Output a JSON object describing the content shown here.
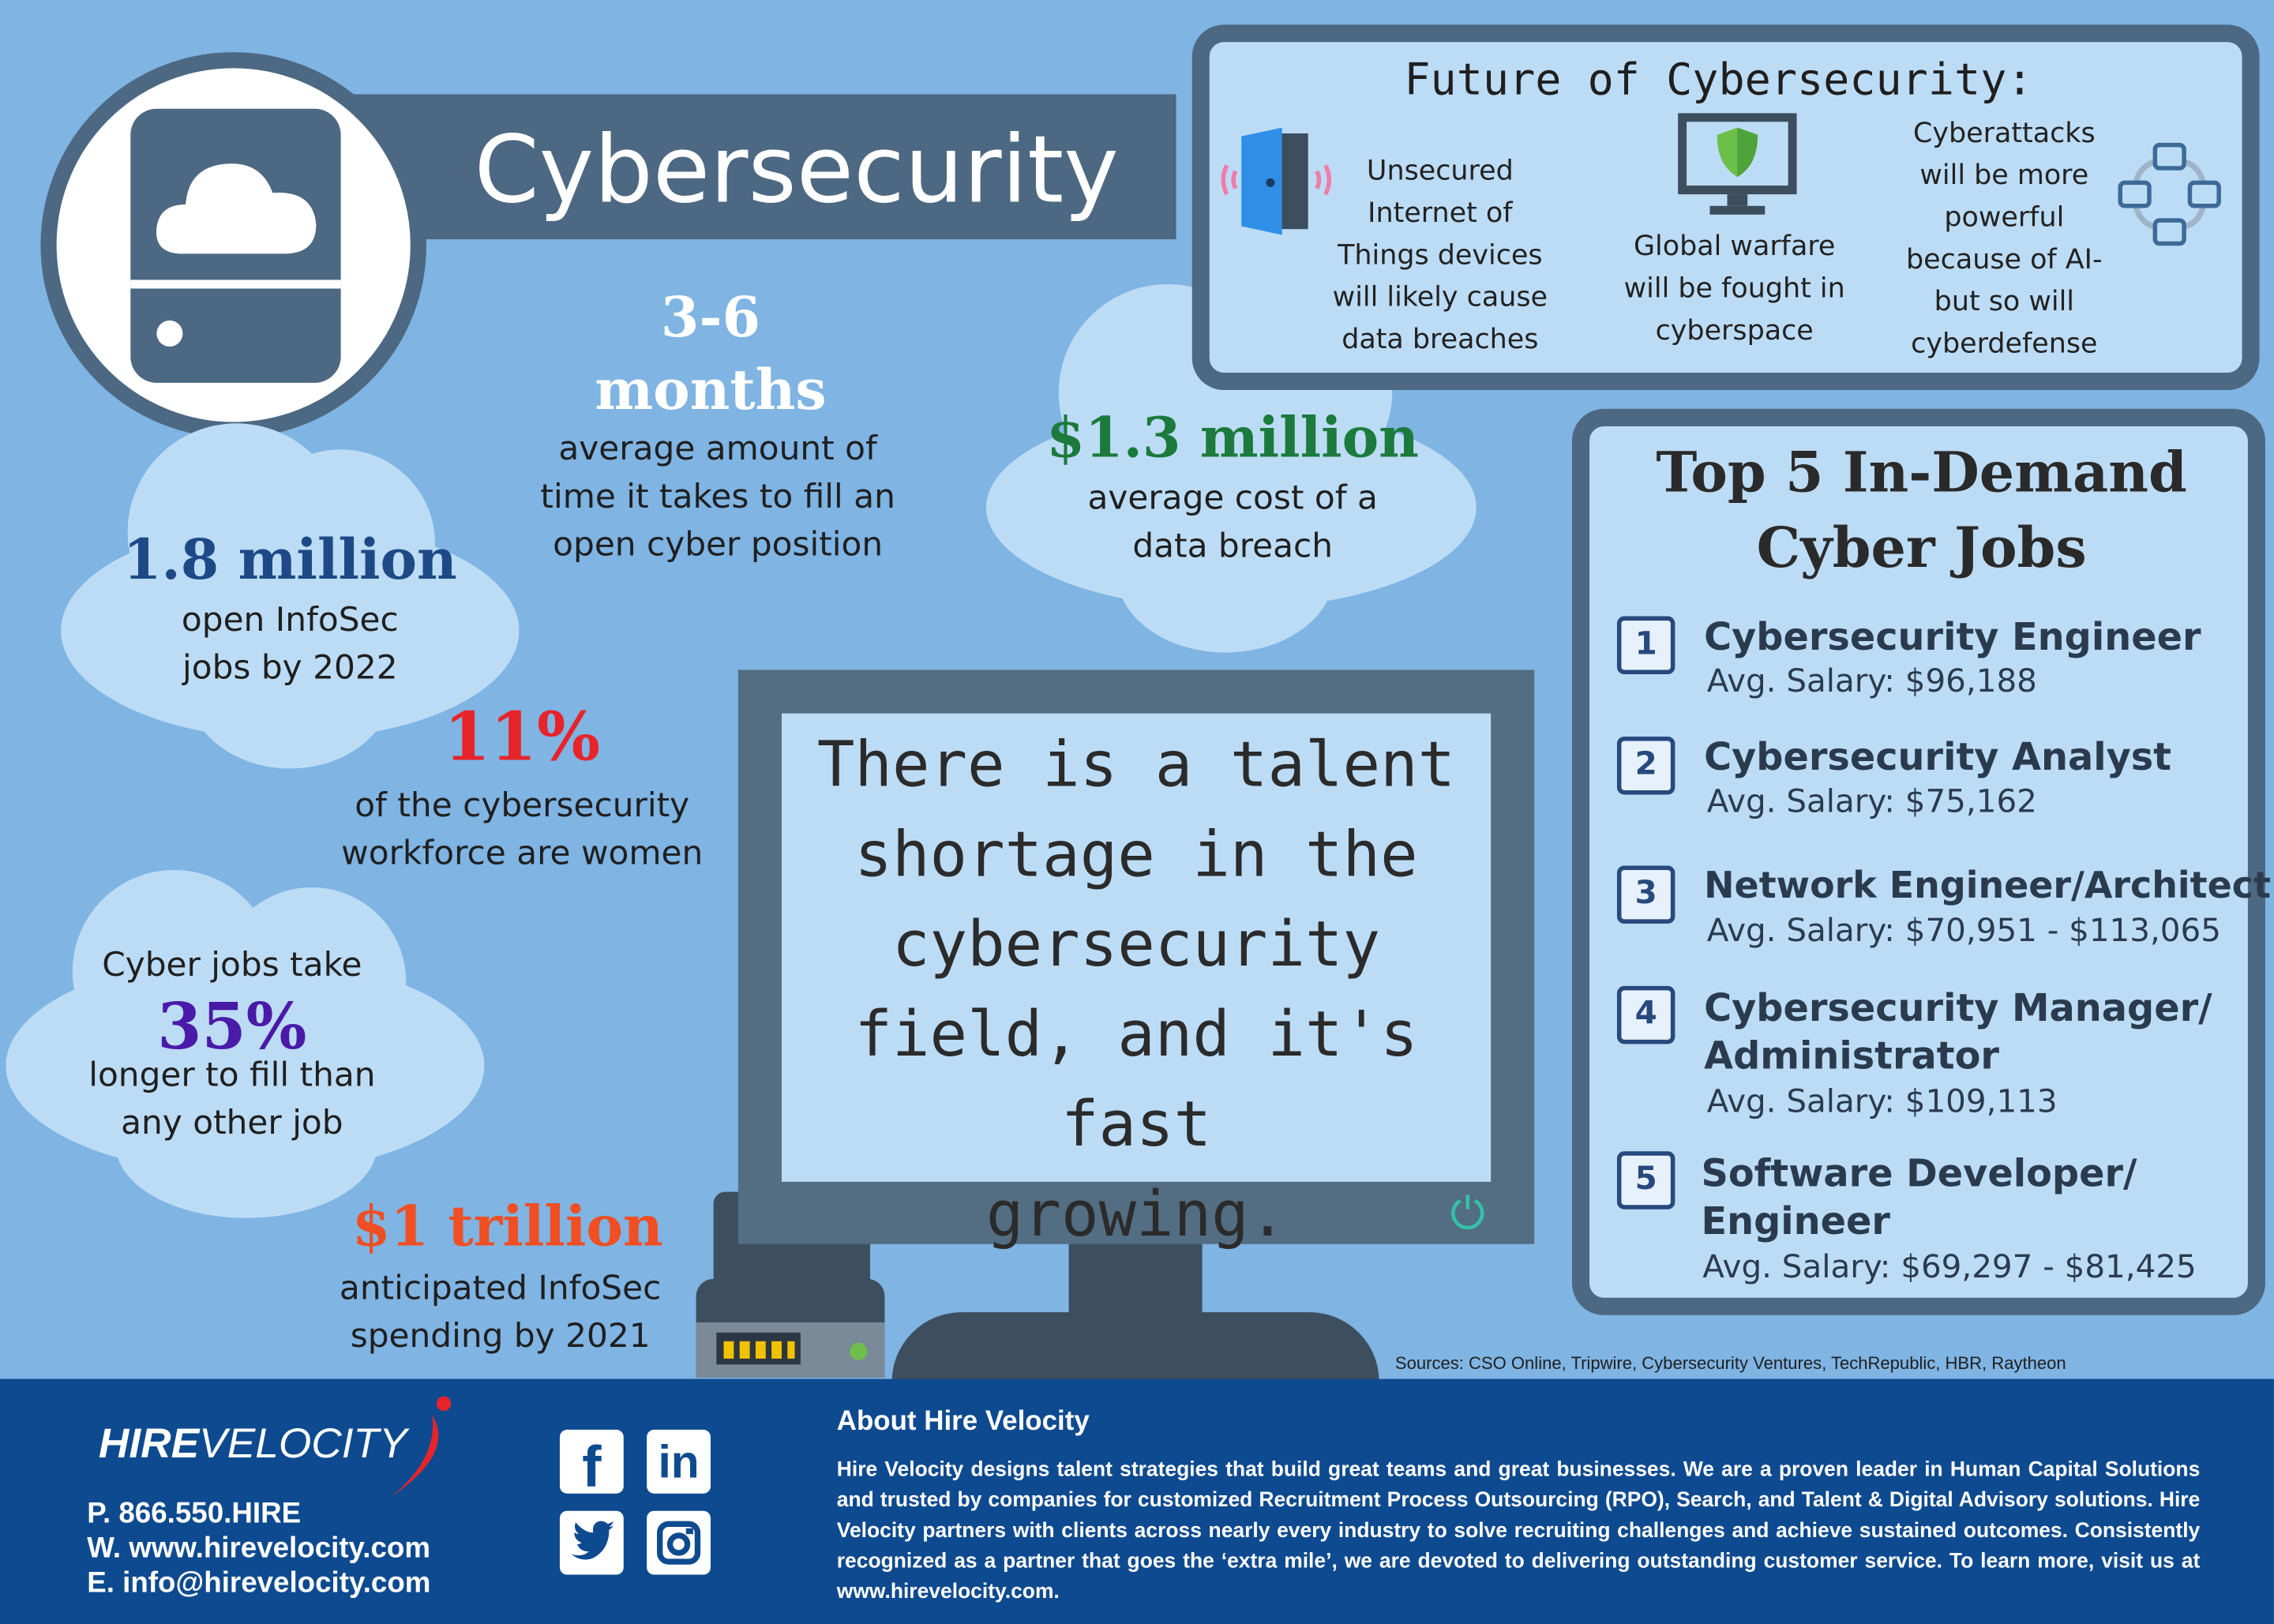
{
  "header": {
    "title": "Cybersecurity"
  },
  "stats": {
    "fill_time": {
      "value_line1": "3-6",
      "value_line2": "months",
      "desc": [
        "average amount of",
        "time it takes to fill an",
        "open cyber position"
      ]
    },
    "breach_cost": {
      "value": "$1.3 million",
      "desc": [
        "average cost of a",
        "data breach"
      ]
    },
    "open_jobs": {
      "value": "1.8 million",
      "desc": [
        "open InfoSec",
        "jobs by 2022"
      ]
    },
    "women": {
      "value": "11%",
      "desc": [
        "of the cybersecurity",
        "workforce are women"
      ]
    },
    "longer": {
      "prefix": "Cyber jobs take",
      "value": "35%",
      "desc": [
        "longer to fill than",
        "any other job"
      ]
    },
    "spending": {
      "value": "$1 trillion",
      "desc": [
        "anticipated InfoSec",
        "spending by 2021"
      ]
    }
  },
  "monitor": {
    "lines": [
      "There is a talent",
      "shortage in the",
      "cybersecurity",
      "field, and it's fast",
      "growing."
    ]
  },
  "future": {
    "title": "Future of Cybersecurity:",
    "items": [
      {
        "icon": "door-icon",
        "lines": [
          "Unsecured",
          "Internet of",
          "Things devices",
          "will likely cause",
          "data breaches"
        ]
      },
      {
        "icon": "shield-monitor-icon",
        "lines": [
          "Global warfare",
          "will be fought in",
          "cyberspace"
        ]
      },
      {
        "icon": "network-icon",
        "lines": [
          "Cyberattacks",
          "will be more",
          "powerful",
          "because of AI-",
          "but so will",
          "cyberdefense"
        ]
      }
    ]
  },
  "jobs": {
    "title_line1": "Top 5 In-Demand",
    "title_line2": "Cyber Jobs",
    "items": [
      {
        "num": "1",
        "title": [
          "Cybersecurity Engineer"
        ],
        "salary": "Avg. Salary: $96,188"
      },
      {
        "num": "2",
        "title": [
          "Cybersecurity Analyst"
        ],
        "salary": "Avg. Salary: $75,162"
      },
      {
        "num": "3",
        "title": [
          "Network Engineer/Architect"
        ],
        "salary": "Avg. Salary: $70,951 - $113,065"
      },
      {
        "num": "4",
        "title": [
          "Cybersecurity Manager/",
          "Administrator"
        ],
        "salary": "Avg. Salary: $109,113"
      },
      {
        "num": "5",
        "title": [
          "Software Developer/",
          "Engineer"
        ],
        "salary": "Avg. Salary: $69,297 - $81,425"
      }
    ]
  },
  "sources": "Sources: CSO Online, Tripwire, Cybersecurity Ventures, TechRepublic, HBR, Raytheon",
  "footer": {
    "logo_hire": "HIRE",
    "logo_velocity": "VELOCITY",
    "phone": "P. 866.550.HIRE",
    "web": "W. www.hirevelocity.com",
    "email": "E. info@hirevelocity.com",
    "about_title": "About Hire Velocity",
    "about_text": "Hire Velocity designs talent strategies that build great teams and great businesses. We are a proven leader in Human Capital Solutions and trusted by companies for customized Recruitment Process Outsourcing (RPO), Search, and Talent & Digital Advisory solutions. Hire Velocity partners with clients across nearly every industry to solve recruiting challenges and achieve sustained outcomes. Consistently recognized as a partner that goes the ‘extra mile’, we are devoted to delivering outstanding customer service. To learn more, visit us at www.hirevelocity.com.",
    "social": {
      "facebook": "f",
      "linkedin": "in",
      "twitter": "twitter-icon",
      "instagram": "instagram-icon"
    }
  },
  "colors": {
    "background": "#7fb4e3",
    "panel": "#4c6882",
    "cloud": "#bcdcf6",
    "footer": "#0e4a8f",
    "green": "#1b7a3c",
    "red": "#e8242b",
    "orange": "#f04e23",
    "purple": "#4a1aa8",
    "navy": "#1d4a86"
  }
}
